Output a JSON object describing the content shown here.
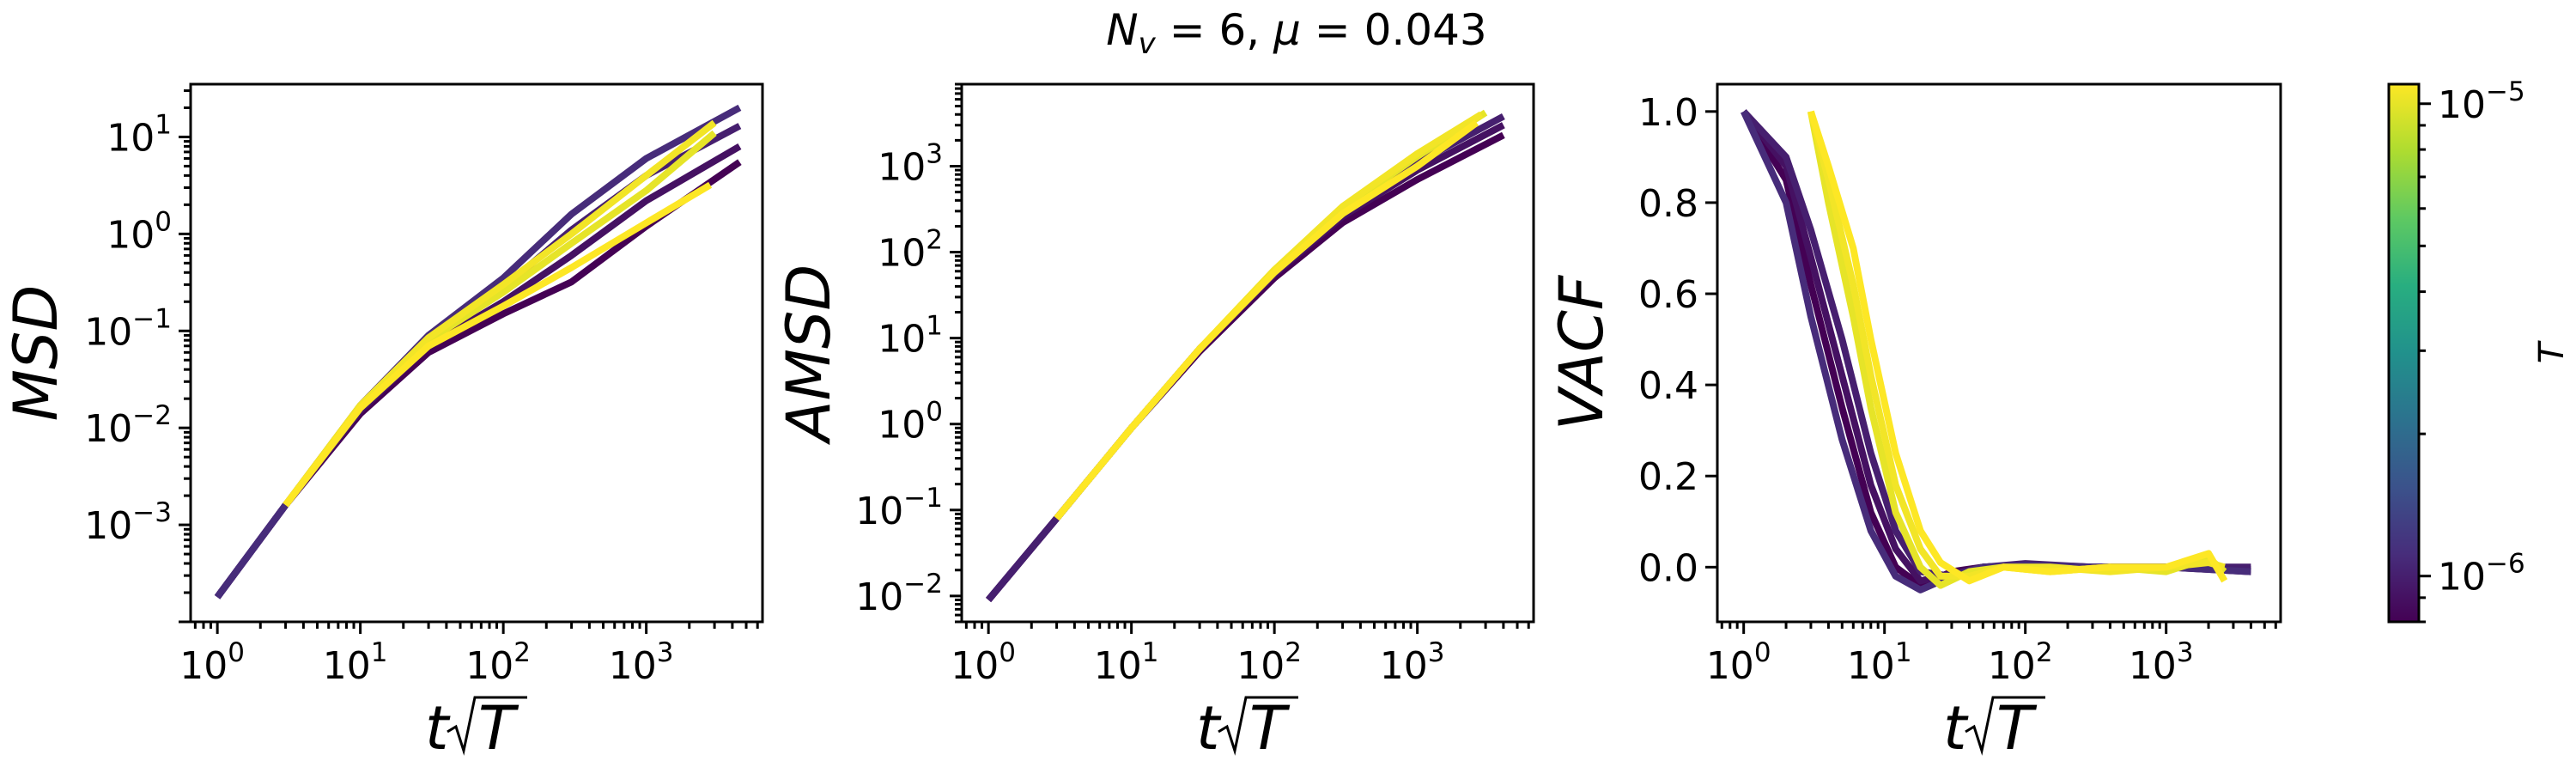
{
  "figure": {
    "title": "N_v = 6, μ = 0.043",
    "title_parts": {
      "n": "N",
      "sub": "v",
      "rest": " = 6, ",
      "mu": "μ",
      "rest2": " = 0.043"
    }
  },
  "colorbar": {
    "label": "T",
    "scale": "log",
    "min": 8e-07,
    "max": 1.1e-05,
    "colormap": "viridis",
    "ticks": [
      {
        "value": 1e-06,
        "label": "10",
        "exp": "−6"
      },
      {
        "value": 1e-05,
        "label": "10",
        "exp": "−5"
      }
    ]
  },
  "chart_data": [
    {
      "type": "line",
      "panel": "msd",
      "ylabel": "MSD",
      "xlabel": "t√T",
      "xscale": "log",
      "yscale": "log",
      "xlim": [
        0.65,
        6500
      ],
      "ylim": [
        0.0001,
        35
      ],
      "grid": false,
      "xticks": [
        {
          "value": 1,
          "label": "10",
          "exp": "0"
        },
        {
          "value": 10,
          "label": "10",
          "exp": "1"
        },
        {
          "value": 100,
          "label": "10",
          "exp": "2"
        },
        {
          "value": 1000,
          "label": "10",
          "exp": "3"
        }
      ],
      "yticks": [
        {
          "value": 0.001,
          "label": "10",
          "exp": "−3"
        },
        {
          "value": 0.01,
          "label": "10",
          "exp": "−2"
        },
        {
          "value": 0.1,
          "label": "10",
          "exp": "−1"
        },
        {
          "value": 1,
          "label": "10",
          "exp": "0"
        },
        {
          "value": 10,
          "label": "10",
          "exp": "1"
        }
      ],
      "series": [
        {
          "T": 8e-07,
          "x": [
            1,
            3,
            10,
            30,
            100,
            300,
            1000,
            4500
          ],
          "y": [
            0.00018,
            0.0016,
            0.014,
            0.06,
            0.15,
            0.32,
            1.2,
            5.5
          ]
        },
        {
          "T": 9e-07,
          "x": [
            1,
            3,
            10,
            30,
            100,
            300,
            1000,
            4500
          ],
          "y": [
            0.00018,
            0.0016,
            0.015,
            0.07,
            0.2,
            0.6,
            2.2,
            8
          ]
        },
        {
          "T": 1e-06,
          "x": [
            1,
            3,
            10,
            30,
            100,
            300,
            1000,
            4500
          ],
          "y": [
            0.00018,
            0.0016,
            0.016,
            0.08,
            0.28,
            1.1,
            4.0,
            13
          ]
        },
        {
          "T": 1.1e-06,
          "x": [
            1,
            3,
            10,
            30,
            100,
            300,
            1000,
            4500
          ],
          "y": [
            0.00018,
            0.0016,
            0.017,
            0.09,
            0.35,
            1.6,
            6.0,
            20
          ]
        },
        {
          "T": 1e-05,
          "x": [
            3,
            10,
            30,
            100,
            300,
            1000,
            3000
          ],
          "y": [
            0.0016,
            0.017,
            0.08,
            0.25,
            0.8,
            2.8,
            11
          ]
        },
        {
          "T": 1.05e-05,
          "x": [
            3,
            10,
            30,
            100,
            300,
            1000,
            3000
          ],
          "y": [
            0.0016,
            0.017,
            0.085,
            0.3,
            1.0,
            4.0,
            14
          ]
        },
        {
          "T": 1.1e-05,
          "x": [
            3,
            10,
            30,
            100,
            300,
            1000,
            2800
          ],
          "y": [
            0.0016,
            0.016,
            0.07,
            0.18,
            0.45,
            1.3,
            3.2
          ]
        }
      ]
    },
    {
      "type": "line",
      "panel": "amsd",
      "ylabel": "AMSD",
      "xlabel": "t√T",
      "xscale": "log",
      "yscale": "log",
      "xlim": [
        0.65,
        6500
      ],
      "ylim": [
        0.005,
        9000
      ],
      "grid": false,
      "xticks": [
        {
          "value": 1,
          "label": "10",
          "exp": "0"
        },
        {
          "value": 10,
          "label": "10",
          "exp": "1"
        },
        {
          "value": 100,
          "label": "10",
          "exp": "2"
        },
        {
          "value": 1000,
          "label": "10",
          "exp": "3"
        }
      ],
      "yticks": [
        {
          "value": 0.01,
          "label": "10",
          "exp": "−2"
        },
        {
          "value": 0.1,
          "label": "10",
          "exp": "−1"
        },
        {
          "value": 1,
          "label": "10",
          "exp": "0"
        },
        {
          "value": 10,
          "label": "10",
          "exp": "1"
        },
        {
          "value": 100,
          "label": "10",
          "exp": "2"
        },
        {
          "value": 1000,
          "label": "10",
          "exp": "3"
        }
      ],
      "series": [
        {
          "T": 8e-07,
          "x": [
            1,
            3,
            10,
            30,
            100,
            300,
            1000,
            4000
          ],
          "y": [
            0.009,
            0.08,
            0.9,
            7,
            50,
            220,
            700,
            2300
          ]
        },
        {
          "T": 9e-07,
          "x": [
            1,
            3,
            10,
            30,
            100,
            300,
            1000,
            4000
          ],
          "y": [
            0.009,
            0.08,
            0.9,
            7.5,
            55,
            260,
            900,
            3000
          ]
        },
        {
          "T": 1e-06,
          "x": [
            1,
            3,
            10,
            30,
            100,
            300,
            1000,
            4000
          ],
          "y": [
            0.009,
            0.08,
            0.9,
            7.5,
            58,
            300,
            1100,
            3800
          ]
        },
        {
          "T": 1e-05,
          "x": [
            3,
            10,
            30,
            100,
            300,
            1000,
            3000
          ],
          "y": [
            0.08,
            0.9,
            7.5,
            60,
            320,
            1300,
            4200
          ]
        },
        {
          "T": 1.05e-05,
          "x": [
            3,
            10,
            30,
            100,
            300,
            1000,
            2800
          ],
          "y": [
            0.08,
            0.9,
            7.5,
            62,
            340,
            1400,
            4000
          ]
        },
        {
          "T": 1.1e-05,
          "x": [
            3,
            10,
            30,
            100,
            300,
            1000,
            2600
          ],
          "y": [
            0.08,
            0.9,
            7.5,
            58,
            280,
            1000,
            3200
          ]
        }
      ]
    },
    {
      "type": "line",
      "panel": "vacf",
      "ylabel": "VACF",
      "xlabel": "t√T",
      "xscale": "log",
      "yscale": "linear",
      "xlim": [
        0.65,
        6500
      ],
      "ylim": [
        -0.12,
        1.06
      ],
      "grid": false,
      "xticks": [
        {
          "value": 1,
          "label": "10",
          "exp": "0"
        },
        {
          "value": 10,
          "label": "10",
          "exp": "1"
        },
        {
          "value": 100,
          "label": "10",
          "exp": "2"
        },
        {
          "value": 1000,
          "label": "10",
          "exp": "3"
        }
      ],
      "yticks": [
        {
          "value": 0.0,
          "label": "0.0"
        },
        {
          "value": 0.2,
          "label": "0.2"
        },
        {
          "value": 0.4,
          "label": "0.4"
        },
        {
          "value": 0.6,
          "label": "0.6"
        },
        {
          "value": 0.8,
          "label": "0.8"
        },
        {
          "value": 1.0,
          "label": "1.0"
        }
      ],
      "series": [
        {
          "T": 8e-07,
          "x": [
            1,
            2,
            3,
            5,
            8,
            12,
            18,
            30,
            50,
            100,
            300,
            1000,
            4000
          ],
          "y": [
            1.0,
            0.85,
            0.62,
            0.35,
            0.12,
            0.0,
            -0.04,
            -0.01,
            0.0,
            0.005,
            0.0,
            0.0,
            -0.01
          ]
        },
        {
          "T": 9e-07,
          "x": [
            1,
            2,
            3,
            5,
            8,
            12,
            18,
            30,
            50,
            100,
            300,
            1000,
            4000
          ],
          "y": [
            1.0,
            0.88,
            0.68,
            0.42,
            0.18,
            0.04,
            -0.03,
            -0.015,
            0.0,
            0.005,
            0.0,
            0.0,
            -0.005
          ]
        },
        {
          "T": 1e-06,
          "x": [
            1,
            2,
            3,
            5,
            8,
            12,
            18,
            30,
            50,
            100,
            300,
            1000,
            4000
          ],
          "y": [
            1.0,
            0.9,
            0.74,
            0.5,
            0.25,
            0.08,
            -0.01,
            -0.02,
            0.0,
            0.008,
            0.0,
            0.0,
            0.0
          ]
        },
        {
          "T": 1.1e-06,
          "x": [
            1,
            2,
            3,
            5,
            8,
            12,
            18,
            30,
            50,
            100,
            300,
            1000,
            4000
          ],
          "y": [
            1.0,
            0.8,
            0.55,
            0.28,
            0.08,
            -0.02,
            -0.05,
            -0.02,
            0.0,
            0.005,
            0.0,
            0.0,
            -0.01
          ]
        },
        {
          "T": 1e-05,
          "x": [
            3,
            4,
            6,
            8,
            12,
            18,
            25,
            40,
            70,
            150,
            400,
            1000,
            2000,
            2600
          ],
          "y": [
            1.0,
            0.8,
            0.55,
            0.35,
            0.12,
            0.0,
            -0.04,
            -0.01,
            0.0,
            -0.01,
            0.0,
            -0.01,
            0.02,
            -0.01
          ]
        },
        {
          "T": 1.05e-05,
          "x": [
            3,
            4,
            6,
            8,
            12,
            18,
            25,
            40,
            70,
            150,
            400,
            1000,
            2000,
            2600
          ],
          "y": [
            1.0,
            0.85,
            0.62,
            0.42,
            0.18,
            0.04,
            -0.02,
            -0.02,
            0.0,
            0.0,
            -0.01,
            0.0,
            0.01,
            0.0
          ]
        },
        {
          "T": 1.1e-05,
          "x": [
            3,
            4,
            6,
            8,
            12,
            18,
            25,
            40,
            70,
            150,
            400,
            1000,
            2000,
            2600
          ],
          "y": [
            1.0,
            0.88,
            0.7,
            0.5,
            0.25,
            0.08,
            0.01,
            -0.03,
            0.0,
            -0.01,
            0.0,
            0.0,
            0.03,
            -0.03
          ]
        }
      ]
    }
  ]
}
